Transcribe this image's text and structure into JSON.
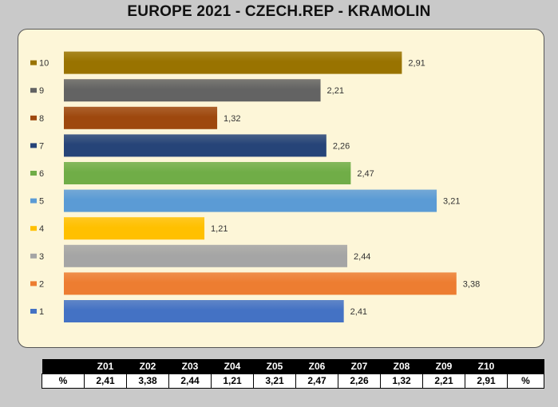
{
  "title": "EUROPE 2021 - CZECH.REP  - KRAMOLIN",
  "colors": {
    "background": "#c9c9c9",
    "panel": "#fdf6d8"
  },
  "chart_data": {
    "type": "bar",
    "orientation": "horizontal",
    "title": "EUROPE 2021 - CZECH.REP  - KRAMOLIN",
    "xlabel": "",
    "ylabel": "",
    "grid": false,
    "legend": "left",
    "categories": [
      "1",
      "2",
      "3",
      "4",
      "5",
      "6",
      "7",
      "8",
      "9",
      "10"
    ],
    "values": [
      2.41,
      3.38,
      2.44,
      1.21,
      3.21,
      2.47,
      2.26,
      1.32,
      2.21,
      2.91
    ],
    "value_labels": [
      "2,41",
      "3,38",
      "2,44",
      "1,21",
      "3,21",
      "2,47",
      "2,26",
      "1,32",
      "2,21",
      "2,91"
    ],
    "bar_colors": [
      "#4472c4",
      "#ed7d31",
      "#a5a5a5",
      "#ffc000",
      "#5b9bd5",
      "#70ad47",
      "#264478",
      "#9e480e",
      "#636363",
      "#997300"
    ],
    "xlim": [
      0,
      4
    ]
  },
  "table": {
    "headers": [
      "",
      "Z01",
      "Z02",
      "Z03",
      "Z04",
      "Z05",
      "Z06",
      "Z07",
      "Z08",
      "Z09",
      "Z10",
      ""
    ],
    "row": [
      "%",
      "2,41",
      "3,38",
      "2,44",
      "1,21",
      "3,21",
      "2,47",
      "2,26",
      "1,32",
      "2,21",
      "2,91",
      "%"
    ]
  }
}
